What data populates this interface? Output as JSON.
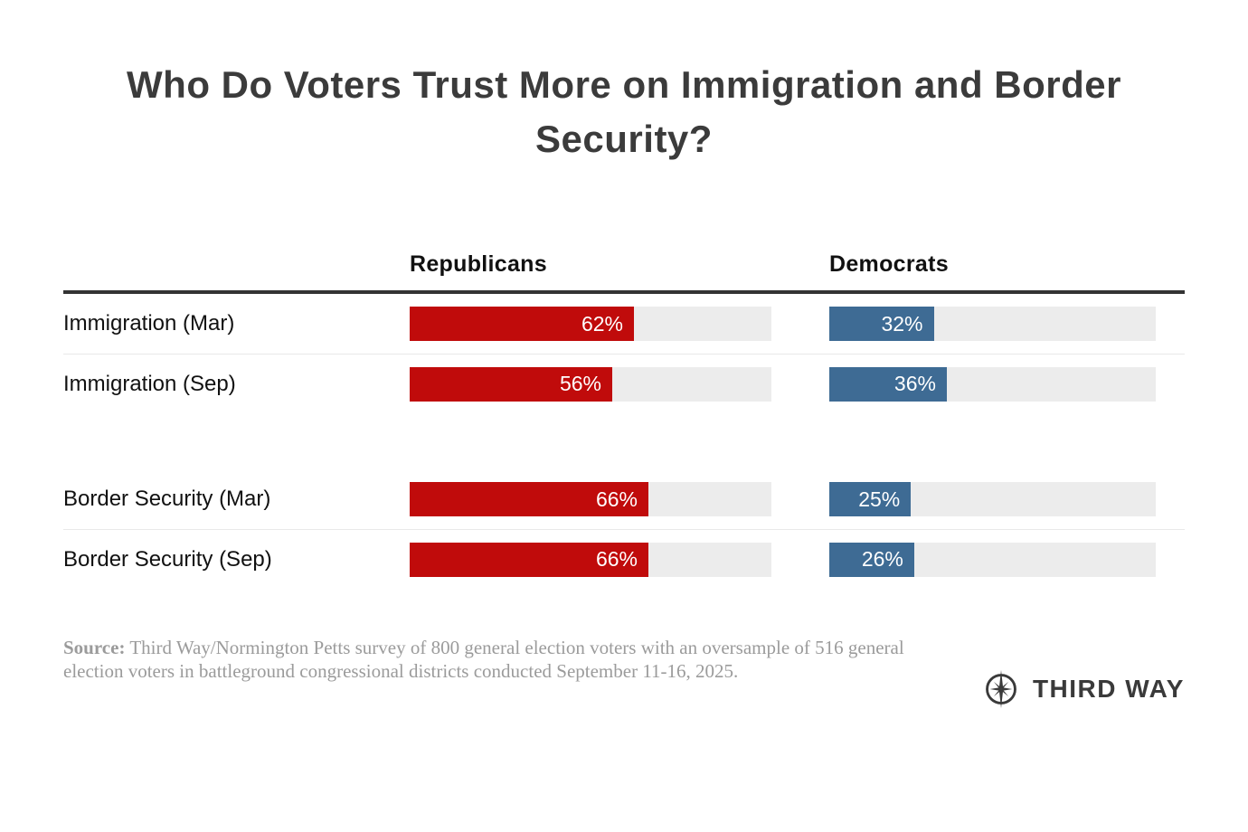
{
  "title": "Who Do Voters Trust More on Immigration and Border Security?",
  "table": {
    "column_headers": [
      "Republicans",
      "Democrats"
    ]
  },
  "chart_data": {
    "type": "bar",
    "orientation": "horizontal",
    "title": "Who Do Voters Trust More on Immigration and Border Security?",
    "categories": [
      "Immigration (Mar)",
      "Immigration (Sep)",
      "Border Security (Mar)",
      "Border Security (Sep)"
    ],
    "series": [
      {
        "name": "Republicans",
        "color": "#c00b0b",
        "values": [
          62,
          56,
          66,
          66
        ],
        "labels": [
          "62%",
          "56%",
          "66%",
          "66%"
        ]
      },
      {
        "name": "Democrats",
        "color": "#3e6b94",
        "values": [
          32,
          36,
          25,
          26
        ],
        "labels": [
          "32%",
          "36%",
          "25%",
          "26%"
        ]
      }
    ],
    "xlim": [
      0,
      100
    ],
    "value_format": "percent",
    "grid": false,
    "legend_position": "column-headers",
    "track_color": "#ececec",
    "group_breaks_after": [
      1
    ]
  },
  "source": {
    "label": "Source:",
    "text": "Third Way/Normington Petts survey of 800 general election voters with an oversample of 516 general election voters in battleground congressional districts conducted September 11-16, 2025."
  },
  "logo": {
    "name": "Third Way",
    "text": "THIRD WAY",
    "icon": "compass-star-icon"
  },
  "colors": {
    "republican": "#c00b0b",
    "democrat": "#3e6b94",
    "track": "#ececec",
    "header_rule": "#333333",
    "divider": "#e9e9e9",
    "source_text": "#9b9b9b",
    "title_text": "#3b3b3b",
    "logo_text": "#3a3a3a"
  }
}
